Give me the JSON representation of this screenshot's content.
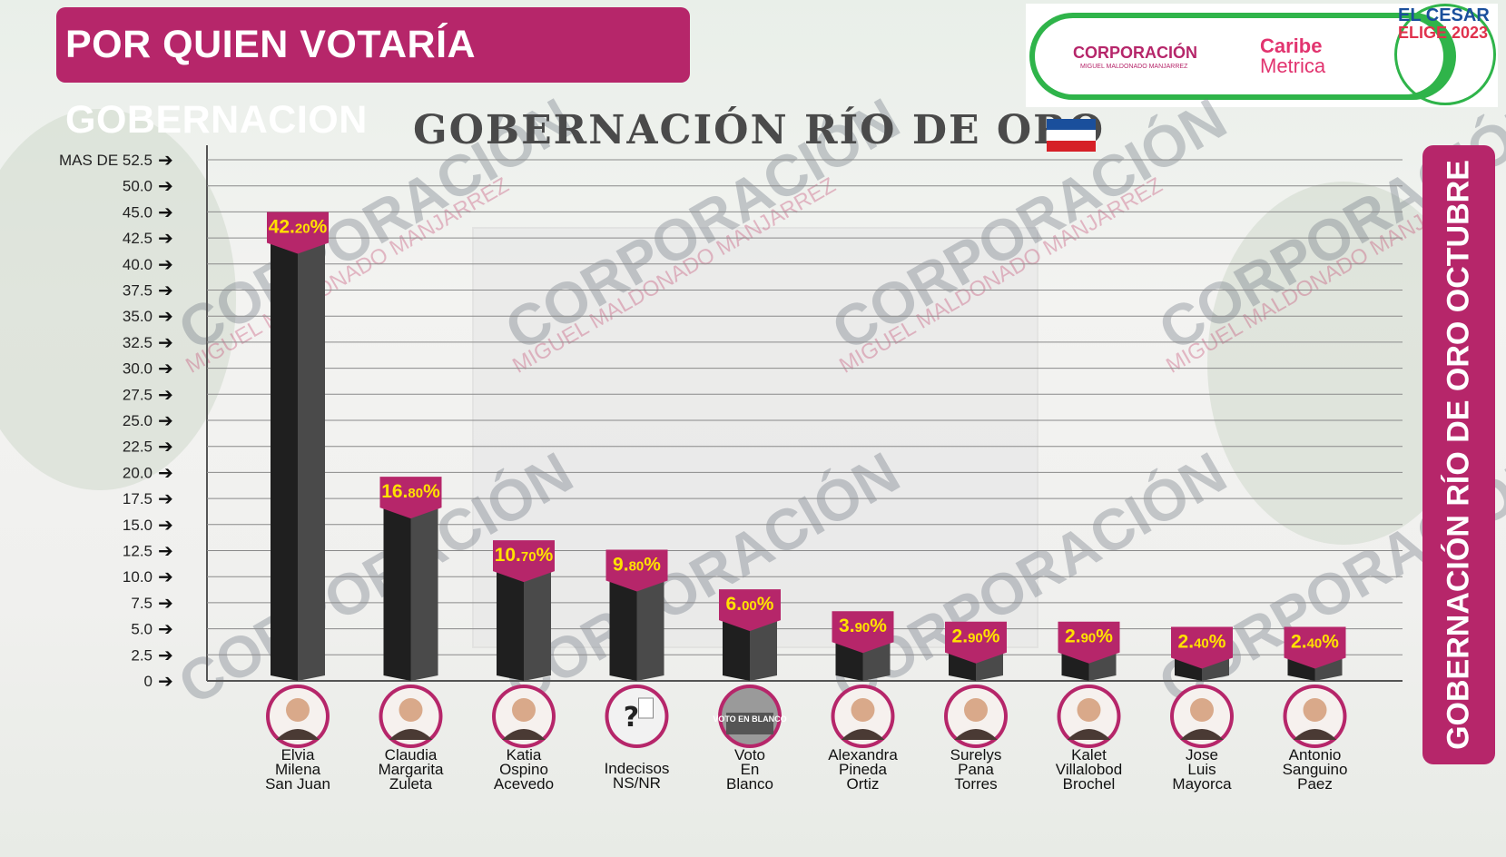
{
  "header": {
    "title": "POR QUIEN VOTARÍA GOBERNACION",
    "side_banner": "GOBERNACIÓN RÍO DE ORO OCTUBRE"
  },
  "logos": {
    "corporacion": "CORPORACIÓN",
    "corporacion_sub": "MIGUEL MALDONADO MANJARREZ",
    "caribe": "Caribe",
    "metrica": "Metrica",
    "cesar": "EL CESAR",
    "elige": "ELIGE 2023"
  },
  "watermark": {
    "main": "CORPORACIÓN",
    "sub": "MIGUEL MALDONADO MANJARREZ"
  },
  "colors": {
    "magenta": "#b6266a",
    "label_text": "#ffe100",
    "bar_front": "#1f1f1f",
    "bar_side": "#4a4a4a",
    "green": "#2fb44a",
    "flag": [
      "#1a4f9c",
      "#ffffff",
      "#d62027"
    ]
  },
  "chart_data": {
    "type": "bar",
    "title": "GOBERNACIÓN RÍO DE ORO",
    "ylim": [
      0,
      52.5
    ],
    "yticks": [
      "0",
      "2.5",
      "5.0",
      "7.5",
      "10.0",
      "12.5",
      "15.0",
      "17.5",
      "20.0",
      "22.5",
      "25.0",
      "27.5",
      "30.0",
      "32.5",
      "35.0",
      "37.5",
      "40.0",
      "42.5",
      "45.0",
      "50.0",
      "MAS DE 52.5"
    ],
    "ytick_values": [
      0,
      2.5,
      5,
      7.5,
      10,
      12.5,
      15,
      17.5,
      20,
      22.5,
      25,
      27.5,
      30,
      32.5,
      35,
      37.5,
      40,
      42.5,
      45,
      50,
      52.5
    ],
    "grid": true,
    "categories": [
      [
        "Elvia",
        "Milena",
        "San Juan"
      ],
      [
        "Claudia",
        "Margarita",
        "Zuleta"
      ],
      [
        "Katia",
        "Ospino",
        "Acevedo"
      ],
      [
        "Indecisos",
        "NS/NR"
      ],
      [
        "Voto",
        "En",
        "Blanco"
      ],
      [
        "Alexandra",
        "Pineda",
        "Ortiz"
      ],
      [
        "Surelys",
        "Pana",
        "Torres"
      ],
      [
        "Kalet",
        "Villalobod",
        "Brochel"
      ],
      [
        "Jose",
        "Luis",
        "Mayorca"
      ],
      [
        "Antonio",
        "Sanguino",
        "Paez"
      ]
    ],
    "values": [
      42.2,
      16.8,
      10.7,
      9.8,
      6.0,
      3.9,
      2.9,
      2.9,
      2.4,
      2.4
    ],
    "labels_int": [
      "42.",
      "16.",
      "10.",
      "9.",
      "6.",
      "3.",
      "2.",
      "2.",
      "2.",
      "2."
    ],
    "labels_dec": [
      "20",
      "80",
      "70",
      "80",
      "00",
      "90",
      "90",
      "90",
      "40",
      "40"
    ],
    "avatar_icons": [
      "person-photo",
      "person-photo",
      "person-photo",
      "question-mark-ballot-icon",
      "blank-vote-ballot-icon",
      "person-photo",
      "person-photo",
      "person-photo",
      "person-photo",
      "person-photo"
    ],
    "avatar_texts": [
      "",
      "",
      "",
      "?",
      "VOTO EN BLANCO",
      "",
      "",
      "",
      "",
      ""
    ]
  }
}
